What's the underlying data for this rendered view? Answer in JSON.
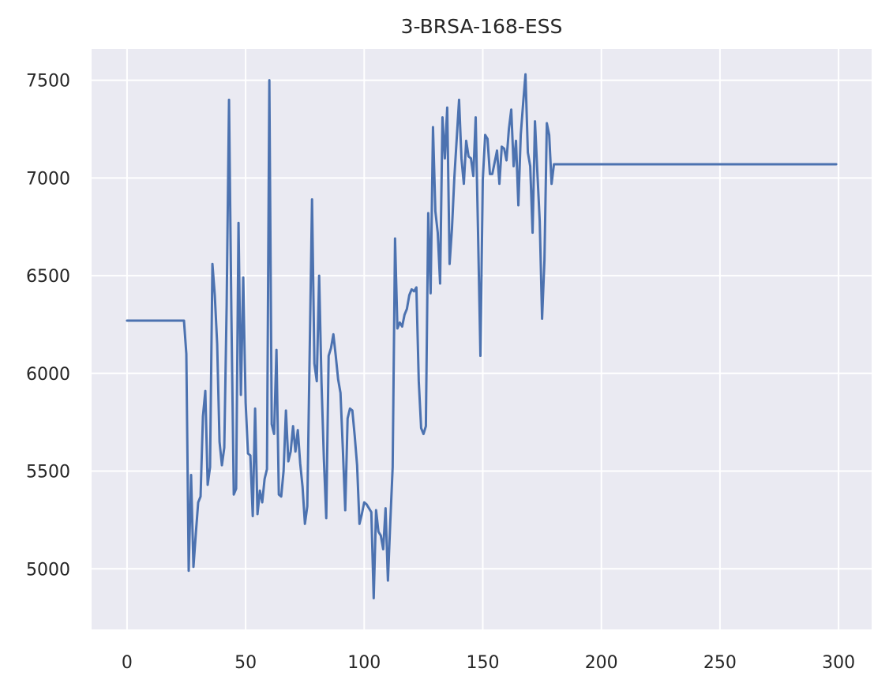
{
  "chart_data": {
    "type": "line",
    "title": "3-BRSA-168-ESS",
    "xlabel": "",
    "ylabel": "",
    "xlim": [
      -14.95,
      313.95
    ],
    "ylim": [
      4690,
      7660
    ],
    "xticks": [
      0,
      50,
      100,
      150,
      200,
      250,
      300
    ],
    "yticks": [
      5000,
      5500,
      6000,
      6500,
      7000,
      7500
    ],
    "grid": true,
    "legend": "none",
    "colors": {
      "background": "#eaeaf2",
      "grid": "#ffffff",
      "series": "#4c72b0",
      "text": "#262626"
    },
    "series": [
      {
        "x": [
          0,
          24,
          25,
          26,
          27,
          28,
          29,
          30,
          31,
          32,
          33,
          34,
          35,
          36,
          37,
          38,
          39,
          40,
          41,
          42,
          43,
          44,
          45,
          46,
          47,
          48,
          49,
          50,
          51,
          52,
          53,
          54,
          55,
          56,
          57,
          58,
          59,
          60,
          61,
          62,
          63,
          64,
          65,
          66,
          67,
          68,
          69,
          70,
          71,
          72,
          73,
          74,
          75,
          76,
          77,
          78,
          79,
          80,
          81,
          82,
          83,
          84,
          85,
          86,
          87,
          88,
          89,
          90,
          91,
          92,
          93,
          94,
          95,
          96,
          97,
          98,
          99,
          100,
          101,
          102,
          103,
          104,
          105,
          106,
          107,
          108,
          109,
          110,
          111,
          112,
          113,
          114,
          115,
          116,
          117,
          118,
          119,
          120,
          121,
          122,
          123,
          124,
          125,
          126,
          127,
          128,
          129,
          130,
          131,
          132,
          133,
          134,
          135,
          136,
          137,
          138,
          139,
          140,
          141,
          142,
          143,
          144,
          145,
          146,
          147,
          148,
          149,
          150,
          151,
          152,
          153,
          154,
          155,
          156,
          157,
          158,
          159,
          160,
          161,
          162,
          163,
          164,
          165,
          166,
          167,
          168,
          169,
          170,
          171,
          172,
          173,
          174,
          175,
          176,
          177,
          178,
          179,
          180,
          299
        ],
        "y": [
          6270,
          6270,
          6100,
          4990,
          5480,
          5010,
          5180,
          5340,
          5370,
          5780,
          5910,
          5430,
          5520,
          6560,
          6400,
          6150,
          5650,
          5530,
          5620,
          6350,
          7400,
          6300,
          5380,
          5410,
          6770,
          5890,
          6490,
          5850,
          5590,
          5580,
          5270,
          5820,
          5280,
          5400,
          5340,
          5460,
          5510,
          7500,
          5740,
          5690,
          6120,
          5380,
          5370,
          5500,
          5810,
          5550,
          5600,
          5730,
          5600,
          5710,
          5540,
          5420,
          5230,
          5320,
          6100,
          6890,
          6050,
          5960,
          6500,
          5950,
          5560,
          5260,
          6090,
          6130,
          6200,
          6090,
          5970,
          5900,
          5610,
          5300,
          5770,
          5820,
          5810,
          5680,
          5530,
          5230,
          5280,
          5340,
          5330,
          5310,
          5290,
          4850,
          5300,
          5190,
          5170,
          5100,
          5310,
          4940,
          5240,
          5520,
          6690,
          6230,
          6260,
          6240,
          6300,
          6330,
          6400,
          6430,
          6420,
          6440,
          5960,
          5720,
          5690,
          5730,
          6820,
          6410,
          7260,
          6830,
          6720,
          6460,
          7310,
          7100,
          7360,
          6560,
          6740,
          7000,
          7200,
          7400,
          7100,
          6970,
          7190,
          7110,
          7100,
          7010,
          7310,
          6720,
          6090,
          6990,
          7220,
          7200,
          7020,
          7020,
          7080,
          7140,
          6970,
          7160,
          7150,
          7090,
          7250,
          7350,
          7060,
          7190,
          6860,
          7220,
          7380,
          7530,
          7130,
          7060,
          6720,
          7290,
          7030,
          6780,
          6280,
          6580,
          7280,
          7220,
          6970,
          7070,
          7070
        ]
      }
    ]
  }
}
